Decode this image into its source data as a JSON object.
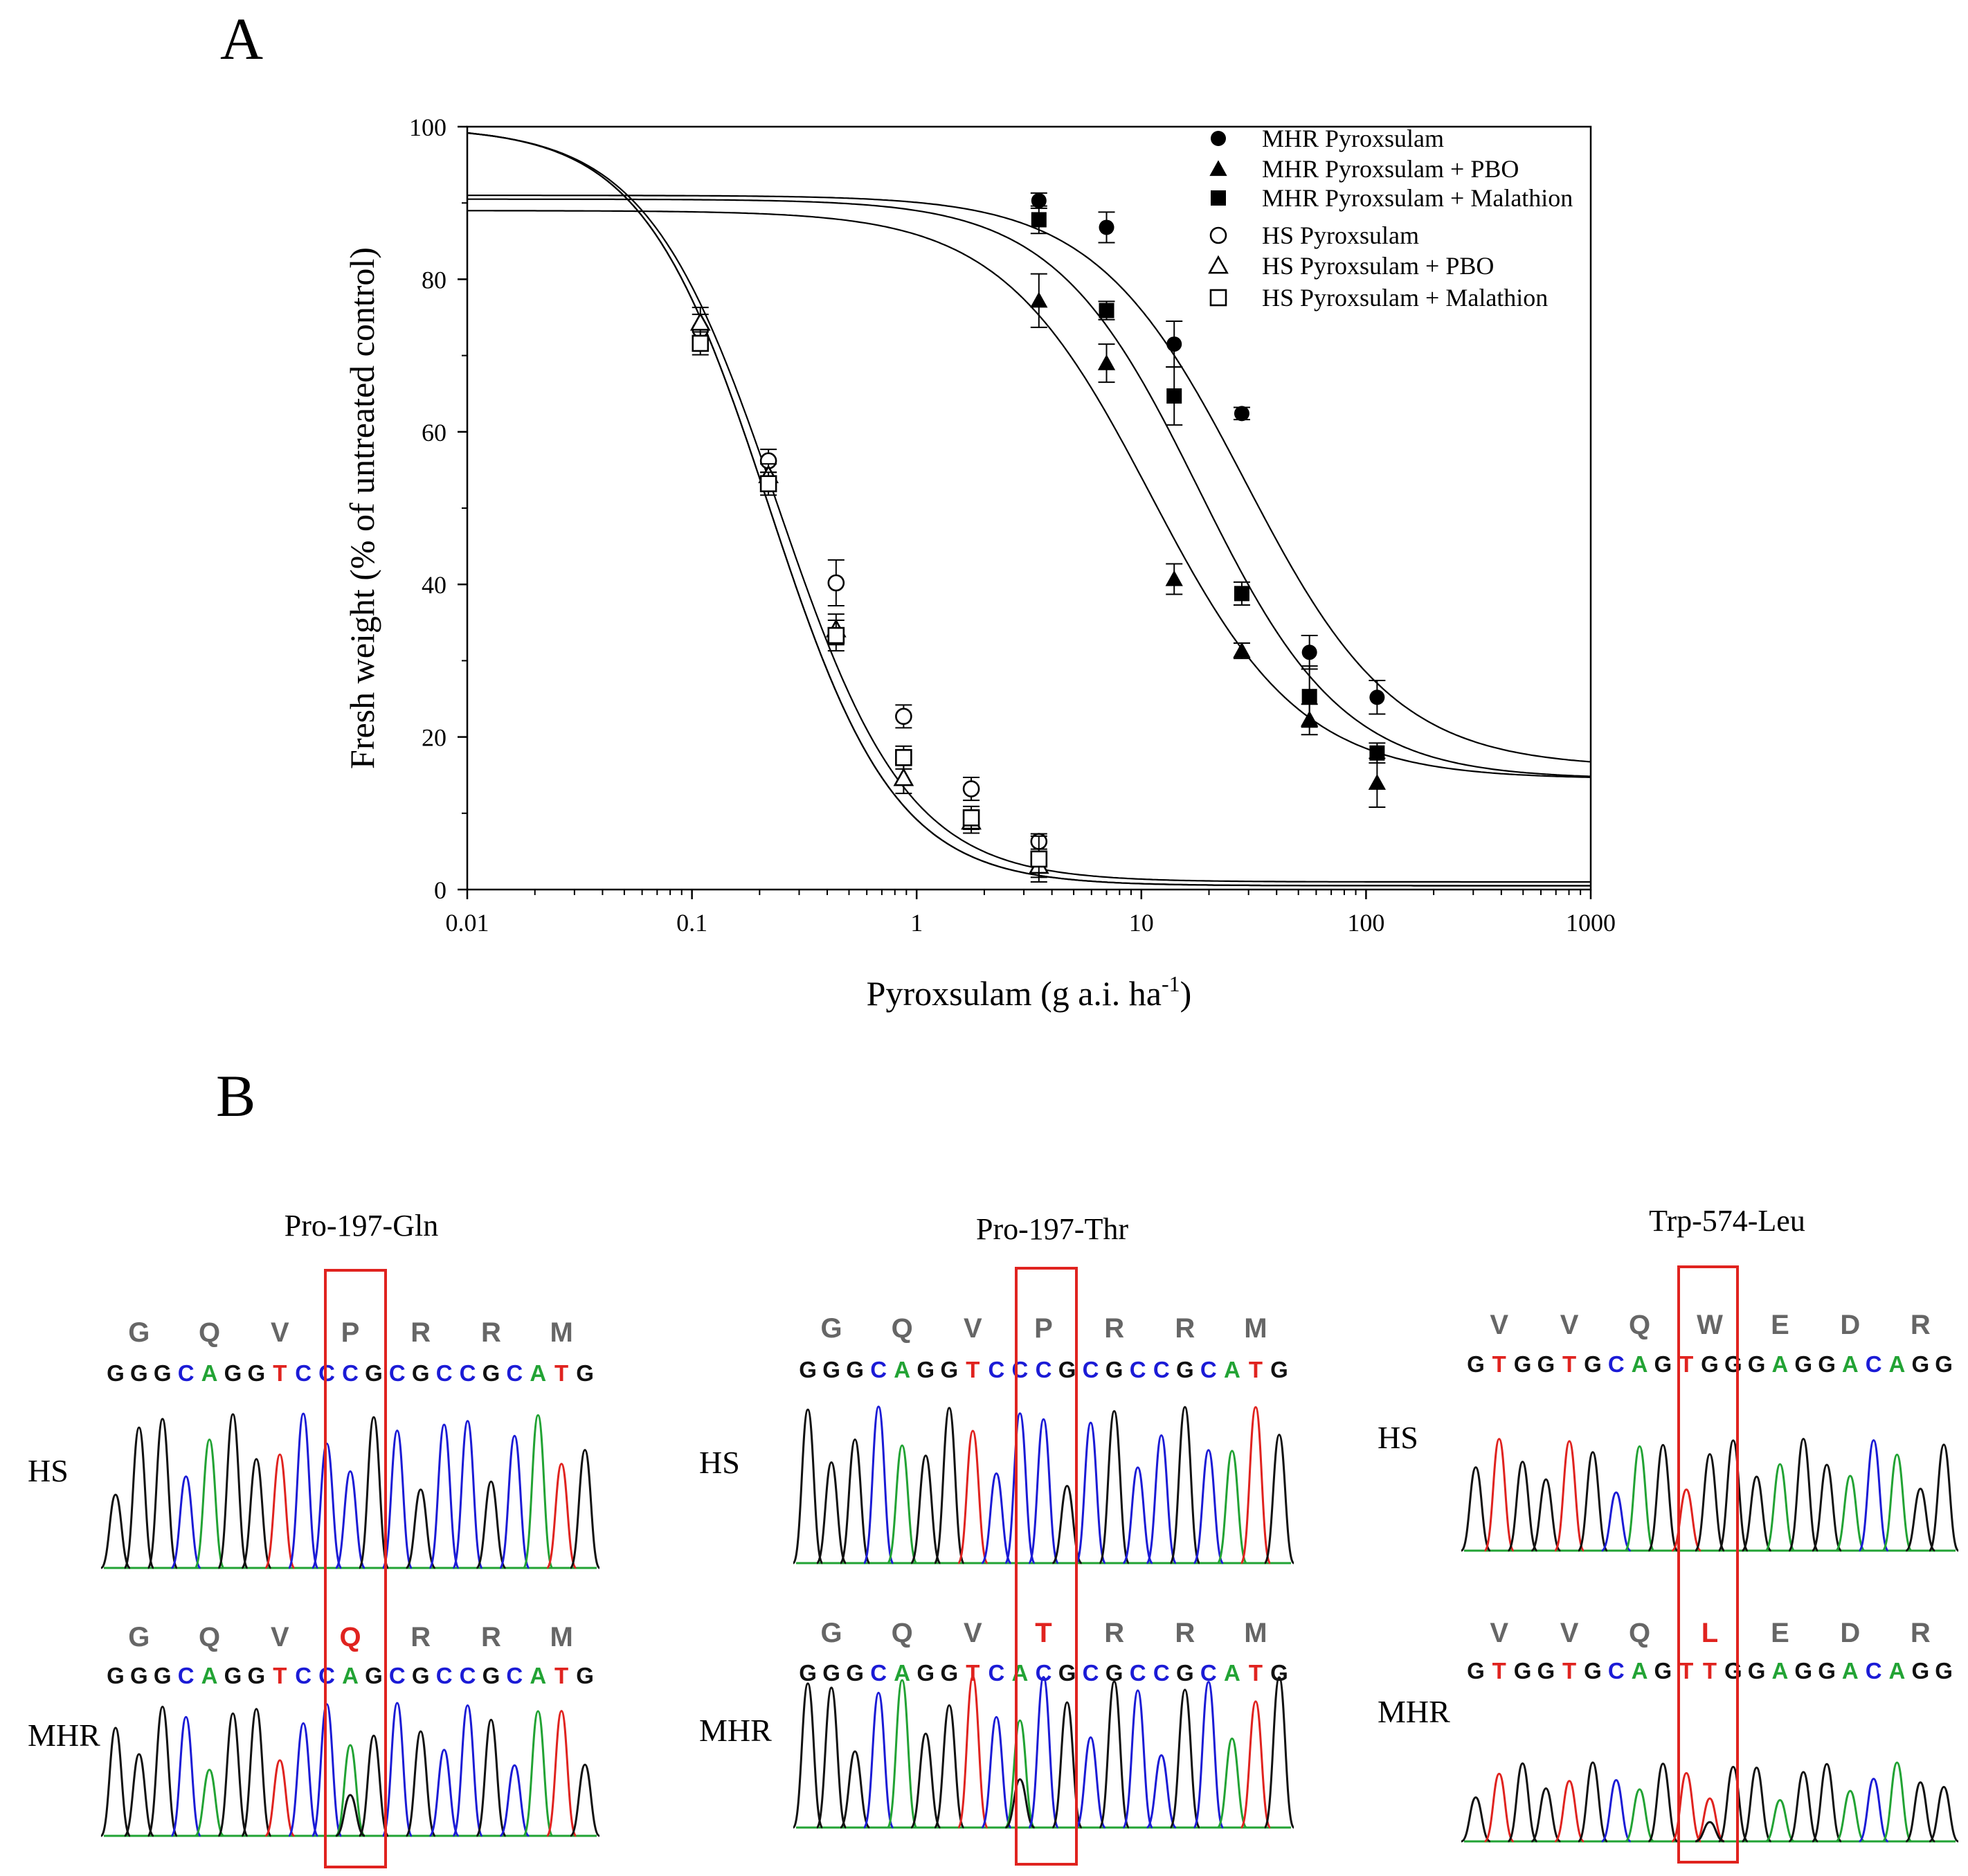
{
  "panel_a_label": "A",
  "panel_b_label": "B",
  "chart_data": {
    "type": "scatter",
    "xscale": "log",
    "xlim": [
      0.01,
      1000
    ],
    "ylim": [
      0,
      100
    ],
    "xlabel": "Pyroxsulam (g a.i. ha",
    "xlabel_sup": "-1",
    "xlabel_end": ")",
    "ylabel": "Fresh weight (% of untreated control)",
    "xticks": [
      0.01,
      0.1,
      1,
      10,
      100,
      1000
    ],
    "xtick_labels": [
      "0.01",
      "0.1",
      "1",
      "10",
      "100",
      "1000"
    ],
    "yticks": [
      0,
      20,
      40,
      60,
      80,
      100
    ],
    "ytick_labels": [
      "0",
      "20",
      "40",
      "60",
      "80",
      "100"
    ],
    "series": [
      {
        "name": "MHR Pyroxsulam",
        "marker": "circle",
        "filled": true,
        "x": [
          3.5,
          7,
          14,
          28,
          56,
          112
        ],
        "y": [
          90.3,
          86.8,
          71.5,
          62.4,
          31.1,
          25.2
        ],
        "err": [
          1.0,
          2.0,
          3.0,
          0.8,
          2.2,
          2.2
        ],
        "fit": {
          "top": 91,
          "bottom": 16,
          "ec50": 29,
          "slope": 1.3
        }
      },
      {
        "name": "MHR Pyroxsulam + PBO",
        "marker": "triangle",
        "filled": true,
        "x": [
          3.5,
          7,
          14,
          28,
          56,
          112
        ],
        "y": [
          77.2,
          69.0,
          40.7,
          31.3,
          22.3,
          14.0
        ],
        "err": [
          3.5,
          2.5,
          2.0,
          1.0,
          2.0,
          3.2
        ],
        "fit": {
          "top": 89,
          "bottom": 14.5,
          "ec50": 11,
          "slope": 1.3
        }
      },
      {
        "name": "MHR Pyroxsulam + Malathion",
        "marker": "square",
        "filled": true,
        "x": [
          3.5,
          7,
          14,
          28,
          56,
          112
        ],
        "y": [
          87.8,
          75.9,
          64.7,
          38.8,
          25.3,
          17.9
        ],
        "err": [
          1.8,
          1.2,
          3.8,
          1.5,
          4.0,
          1.3
        ],
        "fit": {
          "top": 90.5,
          "bottom": 14.5,
          "ec50": 18,
          "slope": 1.35
        }
      },
      {
        "name": "HS Pyroxsulam",
        "marker": "circle",
        "filled": false,
        "x": [
          0.109,
          0.219,
          0.438,
          0.875,
          1.75,
          3.5
        ],
        "y": [
          73.4,
          56.2,
          40.2,
          22.7,
          13.2,
          6.3
        ],
        "err": [
          2.0,
          1.5,
          3.0,
          1.5,
          1.5,
          1.0
        ],
        "fit": {
          "top": 100,
          "bottom": 1,
          "ec50": 0.24,
          "slope": 1.5
        }
      },
      {
        "name": "HS Pyroxsulam + PBO",
        "marker": "triangle",
        "filled": false,
        "x": [
          0.109,
          0.219,
          0.438,
          0.875,
          1.75,
          3.5
        ],
        "y": [
          74.3,
          54.3,
          34.1,
          14.6,
          8.9,
          3.1
        ],
        "err": [
          2.0,
          1.5,
          2.0,
          2.0,
          1.5,
          1.5
        ],
        "fit": {
          "top": 100,
          "bottom": 0.5,
          "ec50": 0.22,
          "slope": 1.55
        }
      },
      {
        "name": "HS Pyroxsulam + Malathion",
        "marker": "square",
        "filled": false,
        "x": [
          0.109,
          0.219,
          0.438,
          0.875,
          1.75,
          3.5
        ],
        "y": [
          71.6,
          53.2,
          33.3,
          17.3,
          9.4,
          4.0
        ],
        "err": [
          1.5,
          1.5,
          2.0,
          1.5,
          1.5,
          3.0
        ],
        "fit": {
          "top": 100,
          "bottom": 0.5,
          "ec50": 0.22,
          "slope": 1.55
        }
      }
    ]
  },
  "chromatograms": [
    {
      "title": "Pro-197-Gln",
      "hs": {
        "label": "HS",
        "codons": [
          "G",
          "Q",
          "V",
          "P",
          "R",
          "R",
          "M"
        ],
        "seq": "GGGCAGGTCCCGCGCCGCATG"
      },
      "mhr": {
        "label": "MHR",
        "codons": [
          "G",
          "Q",
          "V",
          "Q",
          "R",
          "R",
          "M"
        ],
        "seq": "GGGCAGGTCCAGCGCCGCATG"
      },
      "mutant_index": 3
    },
    {
      "title": "Pro-197-Thr",
      "hs": {
        "label": "HS",
        "codons": [
          "G",
          "Q",
          "V",
          "P",
          "R",
          "R",
          "M"
        ],
        "seq": "GGGCAGGTCCCGCGCCGCATG"
      },
      "mhr": {
        "label": "MHR",
        "codons": [
          "G",
          "Q",
          "V",
          "T",
          "R",
          "R",
          "M"
        ],
        "seq": "GGGCAGGTCACGCGCCGCATG"
      },
      "mutant_index": 3
    },
    {
      "title": "Trp-574-Leu",
      "hs": {
        "label": "HS",
        "codons": [
          "V",
          "V",
          "Q",
          "W",
          "E",
          "D",
          "R"
        ],
        "seq": "GTGGTGCAGTGGGAGGACAGG"
      },
      "mhr": {
        "label": "MHR",
        "codons": [
          "V",
          "V",
          "Q",
          "L",
          "E",
          "D",
          "R"
        ],
        "seq": "GTGGTGCAGTTGGAGGACAGG"
      },
      "mutant_index": 3
    }
  ],
  "colors": {
    "A": "#22a334",
    "C": "#1b1bd6",
    "G": "#111111",
    "T": "#e0231f",
    "codon": "#666666",
    "mutant": "#e0231f",
    "box": "#e0231f",
    "axis": "#000000"
  }
}
